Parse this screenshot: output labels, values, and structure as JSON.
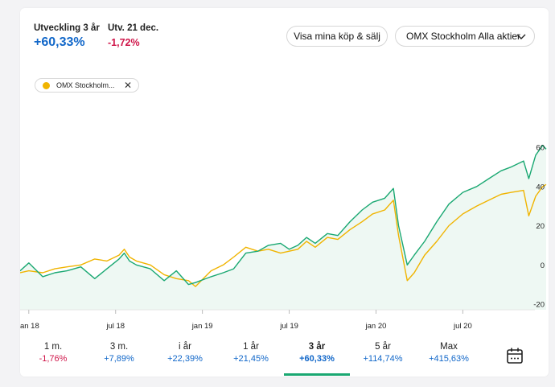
{
  "header": {
    "dev_label": "Utveckling 3 år",
    "dev_value": "+60,33%",
    "day_label": "Utv. 21 dec.",
    "day_value": "-1,72%",
    "trades_button": "Visa mina köp & sälj",
    "index_select": "OMX Stockholm Alla aktier"
  },
  "legend_chip": {
    "label": "OMX Stockholm..."
  },
  "colors": {
    "green": "#1aa872",
    "yellow": "#f0b400",
    "fill": "#eef8f3",
    "positive": "#1167c9",
    "negative": "#d0164a"
  },
  "icons": {
    "chip_close": "close-icon",
    "dropdown": "chevron-down-icon",
    "calendar": "calendar-icon"
  },
  "period_tabs": [
    {
      "label": "1 m.",
      "value": "-1,76%",
      "sign": "neg"
    },
    {
      "label": "3 m.",
      "value": "+7,89%",
      "sign": "pos"
    },
    {
      "label": "i år",
      "value": "+22,39%",
      "sign": "pos"
    },
    {
      "label": "1 år",
      "value": "+21,45%",
      "sign": "pos"
    },
    {
      "label": "3 år",
      "value": "+60,33%",
      "sign": "pos",
      "active": true
    },
    {
      "label": "5 år",
      "value": "+114,74%",
      "sign": "pos"
    },
    {
      "label": "Max",
      "value": "+415,63%",
      "sign": "pos"
    }
  ],
  "chart_data": {
    "type": "line",
    "x_ticks": [
      "jan 18",
      "jul 18",
      "jan 19",
      "jul 19",
      "jan 20",
      "jul 20"
    ],
    "y_ticks": [
      60,
      40,
      20,
      0,
      -20
    ],
    "ylim": [
      -20,
      62
    ],
    "xlim": [
      2017.95,
      2020.98
    ],
    "grid": false,
    "area_fill": true,
    "series": [
      {
        "color": "#1aa872",
        "points": [
          [
            2017.95,
            -3
          ],
          [
            2018.0,
            1
          ],
          [
            2018.08,
            -6
          ],
          [
            2018.15,
            -4
          ],
          [
            2018.22,
            -3
          ],
          [
            2018.3,
            -1
          ],
          [
            2018.38,
            -7
          ],
          [
            2018.45,
            -2
          ],
          [
            2018.52,
            3
          ],
          [
            2018.55,
            6
          ],
          [
            2018.58,
            2
          ],
          [
            2018.62,
            0
          ],
          [
            2018.7,
            -2
          ],
          [
            2018.78,
            -8
          ],
          [
            2018.85,
            -3
          ],
          [
            2018.92,
            -10
          ],
          [
            2018.96,
            -9
          ],
          [
            2019.05,
            -6
          ],
          [
            2019.12,
            -4
          ],
          [
            2019.18,
            -2
          ],
          [
            2019.25,
            6
          ],
          [
            2019.32,
            7
          ],
          [
            2019.38,
            10
          ],
          [
            2019.45,
            11
          ],
          [
            2019.5,
            8
          ],
          [
            2019.55,
            10
          ],
          [
            2019.6,
            14
          ],
          [
            2019.65,
            11
          ],
          [
            2019.72,
            16
          ],
          [
            2019.78,
            15
          ],
          [
            2019.85,
            22
          ],
          [
            2019.92,
            28
          ],
          [
            2019.98,
            32
          ],
          [
            2020.05,
            34
          ],
          [
            2020.1,
            39
          ],
          [
            2020.13,
            20
          ],
          [
            2020.18,
            0
          ],
          [
            2020.22,
            5
          ],
          [
            2020.28,
            12
          ],
          [
            2020.35,
            22
          ],
          [
            2020.42,
            31
          ],
          [
            2020.5,
            37
          ],
          [
            2020.58,
            40
          ],
          [
            2020.65,
            44
          ],
          [
            2020.72,
            48
          ],
          [
            2020.78,
            50
          ],
          [
            2020.85,
            53
          ],
          [
            2020.88,
            44
          ],
          [
            2020.92,
            56
          ],
          [
            2020.96,
            61
          ],
          [
            2020.98,
            59
          ]
        ]
      },
      {
        "color": "#f0b400",
        "points": [
          [
            2017.95,
            -4
          ],
          [
            2018.0,
            -3
          ],
          [
            2018.08,
            -4
          ],
          [
            2018.15,
            -2
          ],
          [
            2018.22,
            -1
          ],
          [
            2018.3,
            0
          ],
          [
            2018.38,
            3
          ],
          [
            2018.45,
            2
          ],
          [
            2018.52,
            5
          ],
          [
            2018.55,
            8
          ],
          [
            2018.58,
            4
          ],
          [
            2018.62,
            2
          ],
          [
            2018.7,
            0
          ],
          [
            2018.78,
            -5
          ],
          [
            2018.85,
            -7
          ],
          [
            2018.92,
            -8
          ],
          [
            2018.96,
            -11
          ],
          [
            2019.05,
            -3
          ],
          [
            2019.12,
            0
          ],
          [
            2019.18,
            4
          ],
          [
            2019.25,
            9
          ],
          [
            2019.32,
            7
          ],
          [
            2019.38,
            8
          ],
          [
            2019.45,
            6
          ],
          [
            2019.5,
            7
          ],
          [
            2019.55,
            8
          ],
          [
            2019.6,
            12
          ],
          [
            2019.65,
            9
          ],
          [
            2019.72,
            14
          ],
          [
            2019.78,
            13
          ],
          [
            2019.85,
            18
          ],
          [
            2019.92,
            22
          ],
          [
            2019.98,
            26
          ],
          [
            2020.05,
            28
          ],
          [
            2020.1,
            33
          ],
          [
            2020.13,
            15
          ],
          [
            2020.18,
            -8
          ],
          [
            2020.22,
            -4
          ],
          [
            2020.28,
            5
          ],
          [
            2020.35,
            12
          ],
          [
            2020.42,
            20
          ],
          [
            2020.5,
            26
          ],
          [
            2020.58,
            30
          ],
          [
            2020.65,
            33
          ],
          [
            2020.72,
            36
          ],
          [
            2020.78,
            37
          ],
          [
            2020.85,
            38
          ],
          [
            2020.88,
            25
          ],
          [
            2020.92,
            35
          ],
          [
            2020.96,
            40
          ],
          [
            2020.98,
            41
          ]
        ]
      }
    ]
  }
}
